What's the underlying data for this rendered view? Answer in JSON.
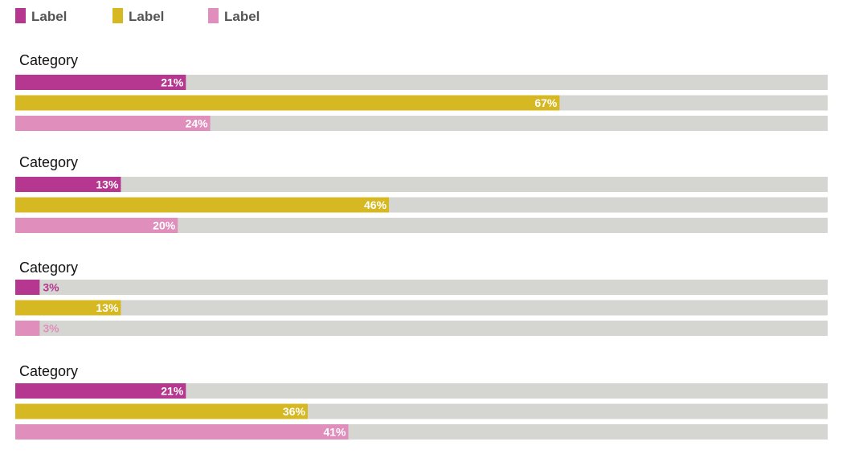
{
  "chart_data": {
    "type": "bar",
    "orientation": "horizontal",
    "grouped": true,
    "categories": [
      "Category",
      "Category",
      "Category",
      "Category"
    ],
    "series": [
      {
        "name": "Label",
        "color": "#b5378f",
        "values": [
          21,
          13,
          3,
          21
        ]
      },
      {
        "name": "Label",
        "color": "#d6b823",
        "values": [
          67,
          46,
          13,
          36
        ]
      },
      {
        "name": "Label",
        "color": "#e08fbd",
        "values": [
          24,
          20,
          3,
          41
        ]
      }
    ],
    "value_suffix": "%",
    "xlim": [
      0,
      100
    ],
    "track_color": "#d5d5d1",
    "legend_position": "top-left",
    "title": "",
    "xlabel": "",
    "ylabel": ""
  }
}
